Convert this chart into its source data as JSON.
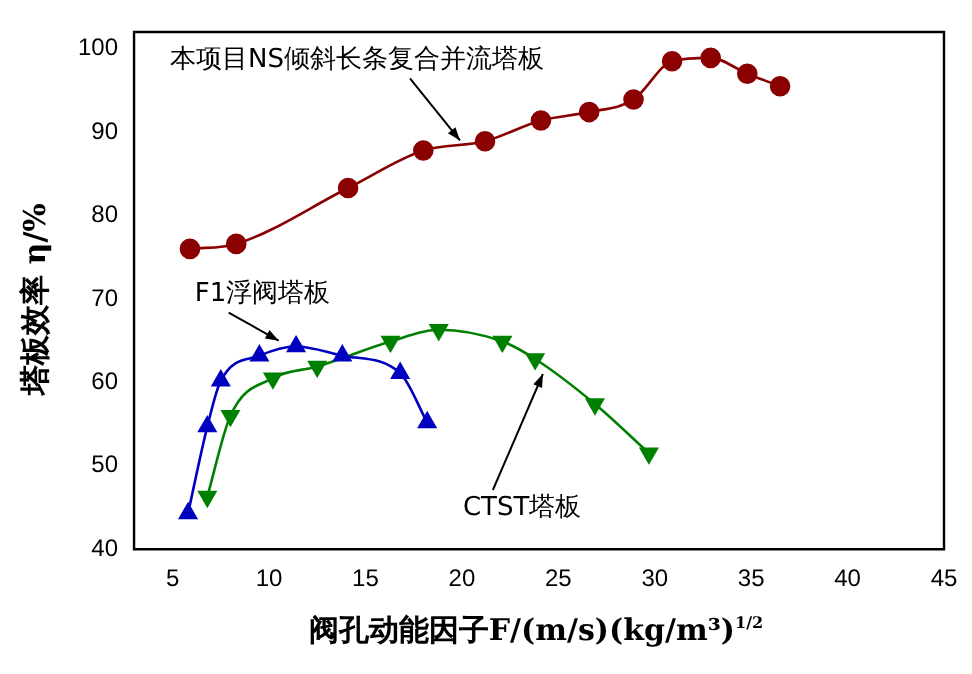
{
  "chart_data": {
    "type": "line",
    "xlabel": "阀孔动能因子F/(m/s)(kg/m³)$^{1/2}$",
    "ylabel": "塔板效率 η/%",
    "xlim": [
      3,
      45
    ],
    "xticks": [
      5,
      10,
      15,
      20,
      25,
      30,
      35,
      40,
      45
    ],
    "ylim": [
      40,
      102
    ],
    "yticks": [
      40,
      50,
      60,
      70,
      80,
      90,
      100
    ],
    "grid": false,
    "legend": false,
    "series": [
      {
        "color": "#8b0000",
        "marker": "circle",
        "x": [
          5.9,
          8.3,
          14.1,
          18.0,
          21.2,
          24.1,
          26.6,
          28.9,
          30.9,
          32.9,
          34.8,
          36.5
        ],
        "values": [
          76.0,
          76.6,
          83.3,
          87.8,
          88.9,
          91.4,
          92.4,
          93.9,
          98.5,
          98.9,
          97.0,
          95.5
        ]
      },
      {
        "color": "#0000c0",
        "marker": "triangle",
        "x": [
          5.8,
          6.8,
          7.5,
          9.5,
          11.4,
          13.8,
          16.8,
          18.2
        ],
        "values": [
          44.3,
          54.7,
          60.2,
          63.2,
          64.3,
          63.2,
          61.1,
          55.2
        ]
      },
      {
        "color": "#008000",
        "marker": "triangle-down",
        "x": [
          6.8,
          8.0,
          10.2,
          12.5,
          16.3,
          18.8,
          22.1,
          23.8,
          26.9,
          29.7
        ],
        "values": [
          46.3,
          56.0,
          60.5,
          61.9,
          64.9,
          66.3,
          64.9,
          62.8,
          57.4,
          51.5
        ]
      }
    ],
    "annotations": [
      {
        "text": "本项目NS倾斜长条复合并流塔板",
        "x": 19.9,
        "y": 89.0
      },
      {
        "text": "F1浮阀塔板",
        "x": 10.5,
        "y": 65.0
      },
      {
        "text": "CTST塔板",
        "x": 24.2,
        "y": 61.0
      }
    ]
  }
}
